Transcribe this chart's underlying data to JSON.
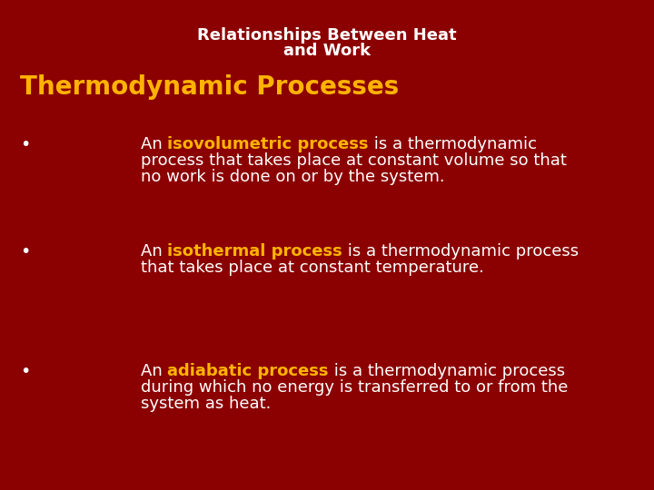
{
  "bg_color": "#8B0000",
  "title_text_line1": "Relationships Between Heat",
  "title_text_line2": "and Work",
  "title_color": "#FFFFFF",
  "title_fontsize": 13,
  "section_title": "Thermodynamic Processes",
  "section_title_color": "#FFB300",
  "section_title_fontsize": 20,
  "bullet_color": "#FFFFFF",
  "bullet_fontsize": 13,
  "highlight_color": "#FFB300",
  "fig_width": 7.2,
  "fig_height": 5.4,
  "fig_dpi": 100,
  "bullets": [
    {
      "keyword": "isovolumetric process",
      "prefix": "An ",
      "lines": [
        " is a thermodynamic",
        "process that takes place at constant volume so that",
        "no work is done on or by the system."
      ]
    },
    {
      "keyword": "isothermal process",
      "prefix": "An ",
      "lines": [
        " is a thermodynamic process",
        "that takes place at constant temperature."
      ]
    },
    {
      "keyword": "adiabatic process",
      "prefix": "An ",
      "lines": [
        " is a thermodynamic process",
        "during which no energy is transferred to or from the",
        "system as heat."
      ]
    }
  ]
}
